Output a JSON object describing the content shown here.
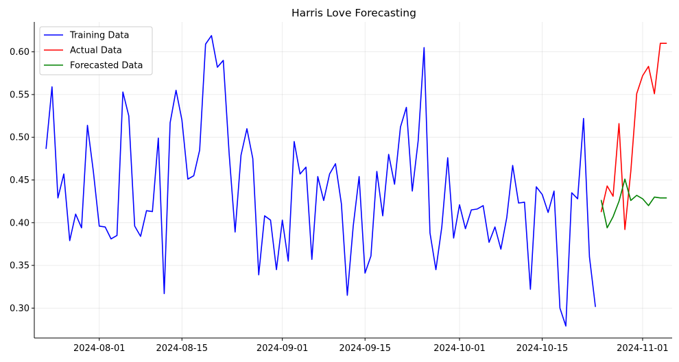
{
  "chart_data": {
    "type": "line",
    "title": "Harris Love Forecasting",
    "xlabel": "",
    "ylabel": "",
    "grid": true,
    "legend_position": "top-left",
    "xlim": [
      "2024-07-21",
      "2024-11-06"
    ],
    "ylim": [
      0.265,
      0.635
    ],
    "y_ticks": [
      0.3,
      0.35,
      0.4,
      0.45,
      0.5,
      0.55,
      0.6
    ],
    "y_tick_labels": [
      "0.30",
      "0.35",
      "0.40",
      "0.45",
      "0.50",
      "0.55",
      "0.60"
    ],
    "x_ticks": [
      "2024-08-01",
      "2024-08-15",
      "2024-09-01",
      "2024-09-15",
      "2024-10-01",
      "2024-10-15",
      "2024-11-01"
    ],
    "x_tick_labels": [
      "2024-08-01",
      "2024-08-15",
      "2024-09-01",
      "2024-09-15",
      "2024-10-01",
      "2024-10-15",
      "2024-11-01"
    ],
    "series": [
      {
        "name": "Training Data",
        "color": "#0000ff",
        "x": [
          "2024-07-23",
          "2024-07-24",
          "2024-07-25",
          "2024-07-26",
          "2024-07-27",
          "2024-07-28",
          "2024-07-29",
          "2024-07-30",
          "2024-07-31",
          "2024-08-01",
          "2024-08-02",
          "2024-08-03",
          "2024-08-04",
          "2024-08-05",
          "2024-08-06",
          "2024-08-07",
          "2024-08-08",
          "2024-08-09",
          "2024-08-10",
          "2024-08-11",
          "2024-08-12",
          "2024-08-13",
          "2024-08-14",
          "2024-08-15",
          "2024-08-16",
          "2024-08-17",
          "2024-08-18",
          "2024-08-19",
          "2024-08-20",
          "2024-08-21",
          "2024-08-22",
          "2024-08-23",
          "2024-08-24",
          "2024-08-25",
          "2024-08-26",
          "2024-08-27",
          "2024-08-28",
          "2024-08-29",
          "2024-08-30",
          "2024-08-31",
          "2024-09-01",
          "2024-09-02",
          "2024-09-03",
          "2024-09-04",
          "2024-09-05",
          "2024-09-06",
          "2024-09-07",
          "2024-09-08",
          "2024-09-09",
          "2024-09-10",
          "2024-09-11",
          "2024-09-12",
          "2024-09-13",
          "2024-09-14",
          "2024-09-15",
          "2024-09-16",
          "2024-09-17",
          "2024-09-18",
          "2024-09-19",
          "2024-09-20",
          "2024-09-21",
          "2024-09-22",
          "2024-09-23",
          "2024-09-24",
          "2024-09-25",
          "2024-09-26",
          "2024-09-27",
          "2024-09-28",
          "2024-09-29",
          "2024-09-30",
          "2024-10-01",
          "2024-10-02",
          "2024-10-03",
          "2024-10-04",
          "2024-10-05",
          "2024-10-06",
          "2024-10-07",
          "2024-10-08",
          "2024-10-09",
          "2024-10-10",
          "2024-10-11",
          "2024-10-12",
          "2024-10-13",
          "2024-10-14",
          "2024-10-15",
          "2024-10-16",
          "2024-10-17",
          "2024-10-18",
          "2024-10-19",
          "2024-10-20",
          "2024-10-21",
          "2024-10-22",
          "2024-10-23",
          "2024-10-24"
        ],
        "y": [
          0.487,
          0.559,
          0.429,
          0.457,
          0.379,
          0.41,
          0.394,
          0.514,
          0.46,
          0.396,
          0.395,
          0.381,
          0.385,
          0.553,
          0.525,
          0.396,
          0.384,
          0.414,
          0.413,
          0.499,
          0.317,
          0.517,
          0.555,
          0.52,
          0.451,
          0.455,
          0.485,
          0.609,
          0.619,
          0.582,
          0.59,
          0.48,
          0.389,
          0.479,
          0.51,
          0.475,
          0.339,
          0.408,
          0.403,
          0.345,
          0.403,
          0.355,
          0.495,
          0.457,
          0.465,
          0.357,
          0.454,
          0.426,
          0.457,
          0.469,
          0.422,
          0.315,
          0.396,
          0.454,
          0.341,
          0.361,
          0.46,
          0.408,
          0.48,
          0.445,
          0.512,
          0.535,
          0.437,
          0.496,
          0.605,
          0.388,
          0.345,
          0.395,
          0.476,
          0.382,
          0.421,
          0.393,
          0.415,
          0.416,
          0.42,
          0.377,
          0.395,
          0.369,
          0.406,
          0.467,
          0.423,
          0.424,
          0.322,
          0.442,
          0.433,
          0.412,
          0.437,
          0.3,
          0.279,
          0.435,
          0.428,
          0.522,
          0.36,
          0.302
        ]
      },
      {
        "name": "Actual Data",
        "color": "#ff0000",
        "x": [
          "2024-10-25",
          "2024-10-26",
          "2024-10-27",
          "2024-10-28",
          "2024-10-29",
          "2024-10-30",
          "2024-10-31",
          "2024-11-01",
          "2024-11-02",
          "2024-11-03",
          "2024-11-04",
          "2024-11-05"
        ],
        "y": [
          0.413,
          0.443,
          0.431,
          0.516,
          0.392,
          0.46,
          0.551,
          0.572,
          0.583,
          0.551,
          0.61,
          0.61
        ]
      },
      {
        "name": "Forecasted Data",
        "color": "#008000",
        "x": [
          "2024-10-25",
          "2024-10-26",
          "2024-10-27",
          "2024-10-28",
          "2024-10-29",
          "2024-10-30",
          "2024-10-31",
          "2024-11-01",
          "2024-11-02",
          "2024-11-03",
          "2024-11-04",
          "2024-11-05"
        ],
        "y": [
          0.426,
          0.394,
          0.407,
          0.425,
          0.451,
          0.426,
          0.432,
          0.428,
          0.42,
          0.43,
          0.429,
          0.429
        ]
      }
    ]
  }
}
